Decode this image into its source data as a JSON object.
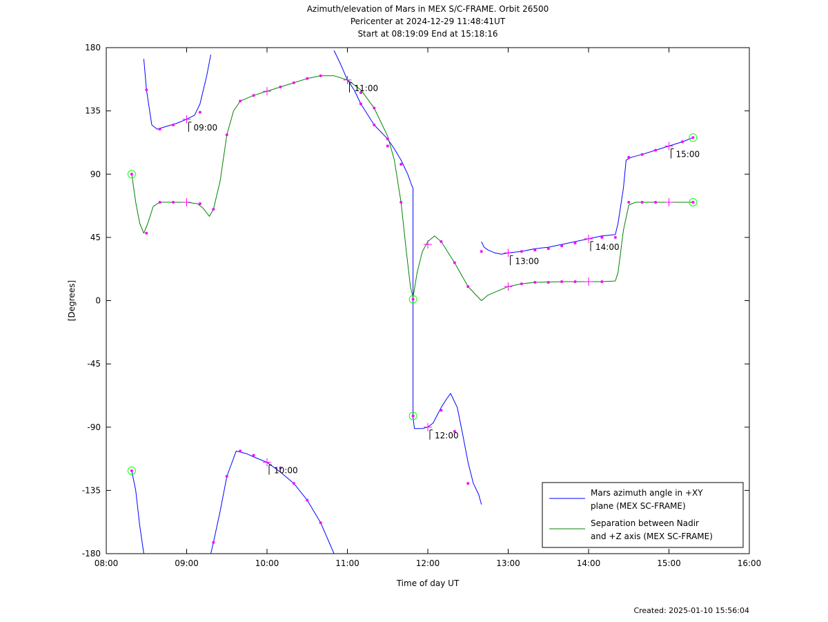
{
  "chart_data": {
    "type": "line",
    "title_lines": [
      "Azimuth/elevation of Mars in MEX S/C-FRAME.  Orbit 26500",
      "Pericenter at 2024-12-29 11:48:41UT",
      "Start at 08:19:09 End at 15:18:16"
    ],
    "xlabel": "Time of day UT",
    "ylabel": "[Degrees]",
    "xlim": [
      "08:00",
      "16:00"
    ],
    "ylim": [
      -180,
      180
    ],
    "x_ticks": [
      "08:00",
      "09:00",
      "10:00",
      "11:00",
      "12:00",
      "13:00",
      "14:00",
      "15:00",
      "16:00"
    ],
    "y_ticks": [
      180,
      135,
      90,
      45,
      0,
      -45,
      -90,
      -135,
      -180
    ],
    "grid": false,
    "legend_position": "bottom-right",
    "colors": {
      "azimuth": "#0000ff",
      "separation": "#008000",
      "markers": "#ff00ff",
      "endpoints": "#00ff00"
    },
    "series": [
      {
        "name": "Mars azimuth angle in +XY plane (MEX SC-FRAME)",
        "legend_lines": [
          "Mars azimuth angle in +XY",
          "plane (MEX SC-FRAME)"
        ],
        "segments": [
          [
            [
              "08:19",
              -121
            ],
            [
              "08:22",
              -135
            ],
            [
              "08:25",
              -160
            ],
            [
              "08:28",
              -180
            ]
          ],
          [
            [
              "08:28",
              172
            ],
            [
              "08:30",
              150
            ],
            [
              "08:34",
              125
            ],
            [
              "08:38",
              122
            ],
            [
              "08:45",
              124
            ],
            [
              "08:52",
              126
            ],
            [
              "09:00",
              129
            ],
            [
              "09:06",
              132
            ],
            [
              "09:10",
              140
            ],
            [
              "09:15",
              160
            ],
            [
              "09:18",
              175
            ]
          ],
          [
            [
              "09:18",
              -180
            ],
            [
              "09:20",
              -172
            ],
            [
              "09:25",
              -150
            ],
            [
              "09:30",
              -125
            ],
            [
              "09:37",
              -107
            ],
            [
              "09:45",
              -109
            ],
            [
              "09:52",
              -112
            ],
            [
              "10:00",
              -115
            ],
            [
              "10:10",
              -122
            ],
            [
              "10:20",
              -130
            ],
            [
              "10:30",
              -142
            ],
            [
              "10:40",
              -158
            ],
            [
              "10:50",
              -180
            ]
          ],
          [
            [
              "10:50",
              178
            ],
            [
              "10:55",
              168
            ],
            [
              "11:00",
              157
            ],
            [
              "11:05",
              150
            ],
            [
              "11:10",
              140
            ],
            [
              "11:20",
              125
            ],
            [
              "11:30",
              115
            ],
            [
              "11:35",
              108
            ],
            [
              "11:40",
              100
            ],
            [
              "11:45",
              90
            ],
            [
              "11:48",
              82
            ],
            [
              "11:49",
              80
            ],
            [
              "11:49",
              -83
            ],
            [
              "11:50",
              -91
            ],
            [
              "11:56",
              -91
            ],
            [
              "12:00",
              -90
            ],
            [
              "12:04",
              -87
            ],
            [
              "12:10",
              -76
            ],
            [
              "12:14",
              -70
            ],
            [
              "12:17",
              -66
            ],
            [
              "12:22",
              -76
            ],
            [
              "12:26",
              -95
            ],
            [
              "12:30",
              -115
            ],
            [
              "12:34",
              -130
            ],
            [
              "12:38",
              -138
            ],
            [
              "12:40",
              -145
            ]
          ],
          [
            [
              "12:40",
              42
            ],
            [
              "12:42",
              38
            ],
            [
              "12:45",
              36
            ],
            [
              "12:50",
              34
            ],
            [
              "12:55",
              33
            ],
            [
              "13:00",
              34
            ],
            [
              "13:10",
              35
            ],
            [
              "13:20",
              37
            ],
            [
              "13:30",
              38
            ],
            [
              "13:40",
              40
            ],
            [
              "13:50",
              42
            ],
            [
              "14:00",
              44
            ],
            [
              "14:10",
              46
            ],
            [
              "14:20",
              47
            ],
            [
              "14:22",
              55
            ],
            [
              "14:26",
              80
            ],
            [
              "14:28",
              100
            ],
            [
              "14:32",
              102
            ],
            [
              "14:40",
              104
            ],
            [
              "14:50",
              107
            ],
            [
              "15:00",
              110
            ],
            [
              "15:10",
              113
            ],
            [
              "15:18",
              116
            ]
          ]
        ]
      },
      {
        "name": "Separation between Nadir and +Z axis (MEX SC-FRAME)",
        "legend_lines": [
          "Separation between Nadir",
          "and +Z axis (MEX SC-FRAME)"
        ],
        "segments": [
          [
            [
              "08:19",
              90
            ],
            [
              "08:22",
              70
            ],
            [
              "08:25",
              55
            ],
            [
              "08:28",
              48
            ],
            [
              "08:31",
              55
            ],
            [
              "08:35",
              67
            ],
            [
              "08:40",
              70
            ],
            [
              "08:50",
              70
            ],
            [
              "09:00",
              70
            ],
            [
              "09:08",
              69
            ],
            [
              "09:12",
              66
            ],
            [
              "09:17",
              60
            ],
            [
              "09:20",
              65
            ],
            [
              "09:25",
              85
            ],
            [
              "09:30",
              118
            ],
            [
              "09:35",
              135
            ],
            [
              "09:40",
              142
            ],
            [
              "09:50",
              146
            ],
            [
              "10:00",
              149
            ],
            [
              "10:10",
              152
            ],
            [
              "10:20",
              155
            ],
            [
              "10:30",
              158
            ],
            [
              "10:40",
              160
            ],
            [
              "10:50",
              160
            ],
            [
              "11:00",
              157
            ],
            [
              "11:10",
              150
            ],
            [
              "11:20",
              137
            ],
            [
              "11:30",
              117
            ],
            [
              "11:35",
              100
            ],
            [
              "11:40",
              70
            ],
            [
              "11:44",
              35
            ],
            [
              "11:47",
              10
            ],
            [
              "11:49",
              2
            ],
            [
              "11:52",
              20
            ],
            [
              "11:56",
              35
            ],
            [
              "12:00",
              42
            ],
            [
              "12:05",
              46
            ],
            [
              "12:10",
              42
            ],
            [
              "12:20",
              27
            ],
            [
              "12:30",
              10
            ],
            [
              "12:40",
              0
            ],
            [
              "12:45",
              4
            ],
            [
              "12:55",
              8
            ],
            [
              "13:00",
              10
            ],
            [
              "13:10",
              12
            ],
            [
              "13:20",
              13
            ],
            [
              "13:40",
              13.5
            ],
            [
              "14:00",
              13.5
            ],
            [
              "14:10",
              13.5
            ],
            [
              "14:20",
              14
            ],
            [
              "14:22",
              20
            ],
            [
              "14:26",
              50
            ],
            [
              "14:30",
              68
            ],
            [
              "14:35",
              70
            ],
            [
              "15:00",
              70
            ],
            [
              "15:18",
              70
            ]
          ]
        ]
      }
    ],
    "time_labels": [
      {
        "text": "09:00",
        "x": "09:00",
        "y": 129
      },
      {
        "text": "10:00",
        "x": "10:00",
        "y": -115
      },
      {
        "text": "11:00",
        "x": "11:00",
        "y": 157
      },
      {
        "text": "12:00",
        "x": "12:00",
        "y": -90
      },
      {
        "text": "13:00",
        "x": "13:00",
        "y": 34
      },
      {
        "text": "14:00",
        "x": "14:00",
        "y": 44
      },
      {
        "text": "15:00",
        "x": "15:00",
        "y": 110
      }
    ],
    "endpoint_markers": [
      {
        "x": "08:19",
        "y": 90
      },
      {
        "x": "08:19",
        "y": -121
      },
      {
        "x": "11:49",
        "y": 1
      },
      {
        "x": "11:49",
        "y": -82
      },
      {
        "x": "15:18",
        "y": 116
      },
      {
        "x": "15:18",
        "y": 70
      }
    ],
    "cross_markers": [
      {
        "x": "09:00",
        "y": 129
      },
      {
        "x": "10:00",
        "y": -115
      },
      {
        "x": "11:00",
        "y": 157
      },
      {
        "x": "12:00",
        "y": -90
      },
      {
        "x": "12:00",
        "y": 40
      },
      {
        "x": "13:00",
        "y": 34
      },
      {
        "x": "13:00",
        "y": 10
      },
      {
        "x": "14:00",
        "y": 44
      },
      {
        "x": "14:00",
        "y": 13.5
      },
      {
        "x": "15:00",
        "y": 110
      },
      {
        "x": "15:00",
        "y": 70
      },
      {
        "x": "09:00",
        "y": 70
      },
      {
        "x": "10:00",
        "y": 149
      }
    ],
    "dot_markers": [
      [
        "08:30",
        150
      ],
      [
        "08:40",
        122
      ],
      [
        "08:50",
        125
      ],
      [
        "09:10",
        134
      ],
      [
        "08:30",
        48
      ],
      [
        "08:40",
        70
      ],
      [
        "08:50",
        70
      ],
      [
        "09:10",
        69
      ],
      [
        "09:20",
        65
      ],
      [
        "09:30",
        118
      ],
      [
        "09:40",
        142
      ],
      [
        "09:50",
        146
      ],
      [
        "10:10",
        152
      ],
      [
        "10:20",
        155
      ],
      [
        "10:30",
        158
      ],
      [
        "10:40",
        160
      ],
      [
        "09:20",
        -172
      ],
      [
        "09:30",
        -125
      ],
      [
        "09:40",
        -107
      ],
      [
        "09:50",
        -110
      ],
      [
        "10:10",
        -119
      ],
      [
        "10:20",
        -130
      ],
      [
        "10:30",
        -142
      ],
      [
        "10:40",
        -158
      ],
      [
        "11:10",
        148
      ],
      [
        "11:20",
        137
      ],
      [
        "11:30",
        115
      ],
      [
        "11:40",
        97
      ],
      [
        "11:10",
        140
      ],
      [
        "11:20",
        125
      ],
      [
        "11:30",
        110
      ],
      [
        "11:40",
        70
      ],
      [
        "12:10",
        42
      ],
      [
        "12:20",
        27
      ],
      [
        "12:30",
        10
      ],
      [
        "12:10",
        -78
      ],
      [
        "12:20",
        -93
      ],
      [
        "12:30",
        -130
      ],
      [
        "12:40",
        35
      ],
      [
        "13:10",
        35
      ],
      [
        "13:20",
        36
      ],
      [
        "13:30",
        37
      ],
      [
        "13:40",
        39
      ],
      [
        "13:50",
        41
      ],
      [
        "14:10",
        45
      ],
      [
        "13:10",
        12
      ],
      [
        "13:20",
        13
      ],
      [
        "13:30",
        13
      ],
      [
        "13:40",
        13.5
      ],
      [
        "13:50",
        13.5
      ],
      [
        "14:10",
        13.5
      ],
      [
        "14:20",
        45
      ],
      [
        "14:30",
        70
      ],
      [
        "14:40",
        70
      ],
      [
        "14:50",
        70
      ],
      [
        "14:30",
        102
      ],
      [
        "14:40",
        104
      ],
      [
        "14:50",
        107
      ],
      [
        "15:10",
        113
      ]
    ],
    "footer": "Created: 2025-01-10 15:56:04"
  }
}
